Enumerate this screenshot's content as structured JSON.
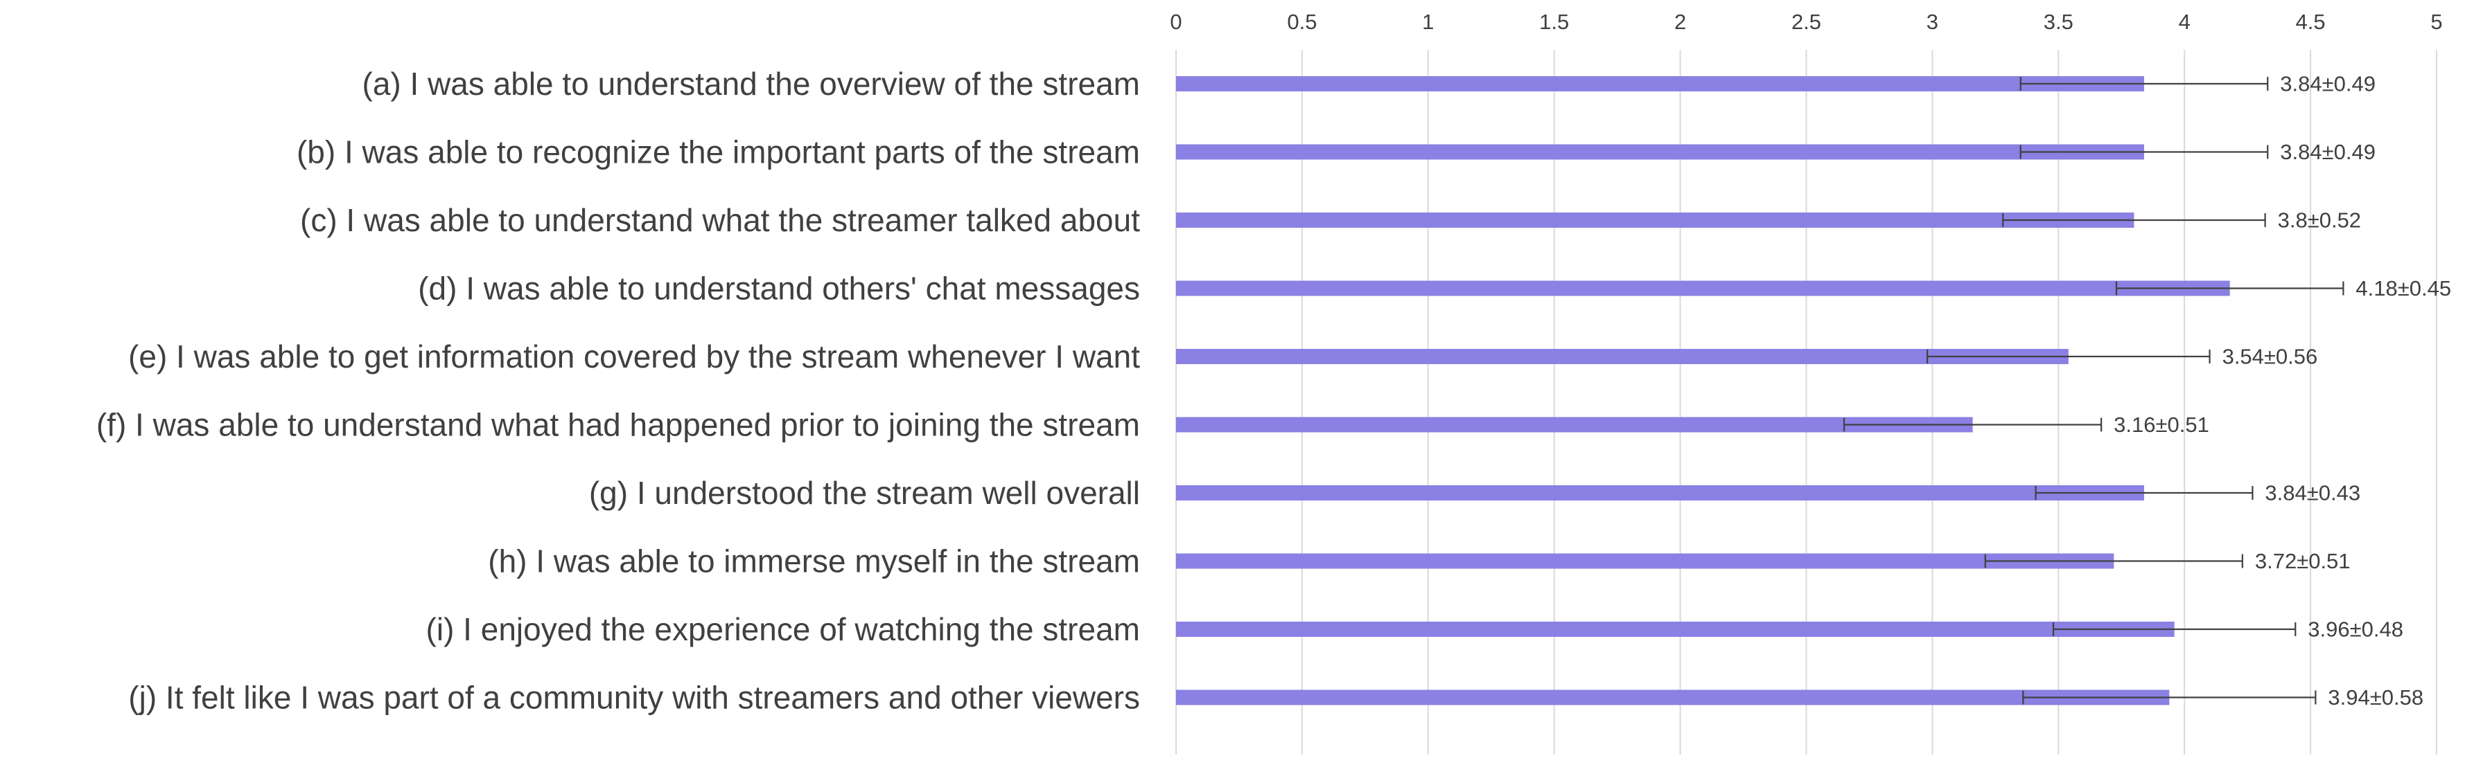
{
  "chart_data": {
    "type": "bar",
    "orientation": "horizontal",
    "title": "",
    "xlabel": "",
    "ylabel": "",
    "xlim": [
      0,
      5
    ],
    "x_ticks": [
      "0",
      "0.5",
      "1",
      "1.5",
      "2",
      "2.5",
      "3",
      "3.5",
      "4",
      "4.5",
      "5"
    ],
    "x_axis_position": "top",
    "grid": true,
    "legend": "none",
    "bar_color": "#8b80e3",
    "categories": [
      "(a) I was able to understand the overview of the stream",
      "(b) I was able to recognize the important parts of the stream",
      "(c) I was able to understand what the streamer talked about",
      "(d) I was able to understand others' chat messages",
      "(e) I was able to get information covered by the stream whenever I want",
      "(f) I was able to understand what had happened prior to joining the stream",
      "(g) I understood the stream well overall",
      "(h) I was able to immerse myself in the stream",
      "(i) I enjoyed the experience of watching the stream",
      "(j) It felt like I was part of a community with streamers and other viewers"
    ],
    "values": [
      3.84,
      3.84,
      3.8,
      4.18,
      3.54,
      3.16,
      3.84,
      3.72,
      3.96,
      3.94
    ],
    "errors": [
      0.49,
      0.49,
      0.52,
      0.45,
      0.56,
      0.51,
      0.43,
      0.51,
      0.48,
      0.58
    ],
    "data_labels": [
      "3.84±0.49",
      "3.84±0.49",
      "3.8±0.52",
      "4.18±0.45",
      "3.54±0.56",
      "3.16±0.51",
      "3.84±0.43",
      "3.72±0.51",
      "3.96±0.48",
      "3.94±0.58"
    ]
  }
}
